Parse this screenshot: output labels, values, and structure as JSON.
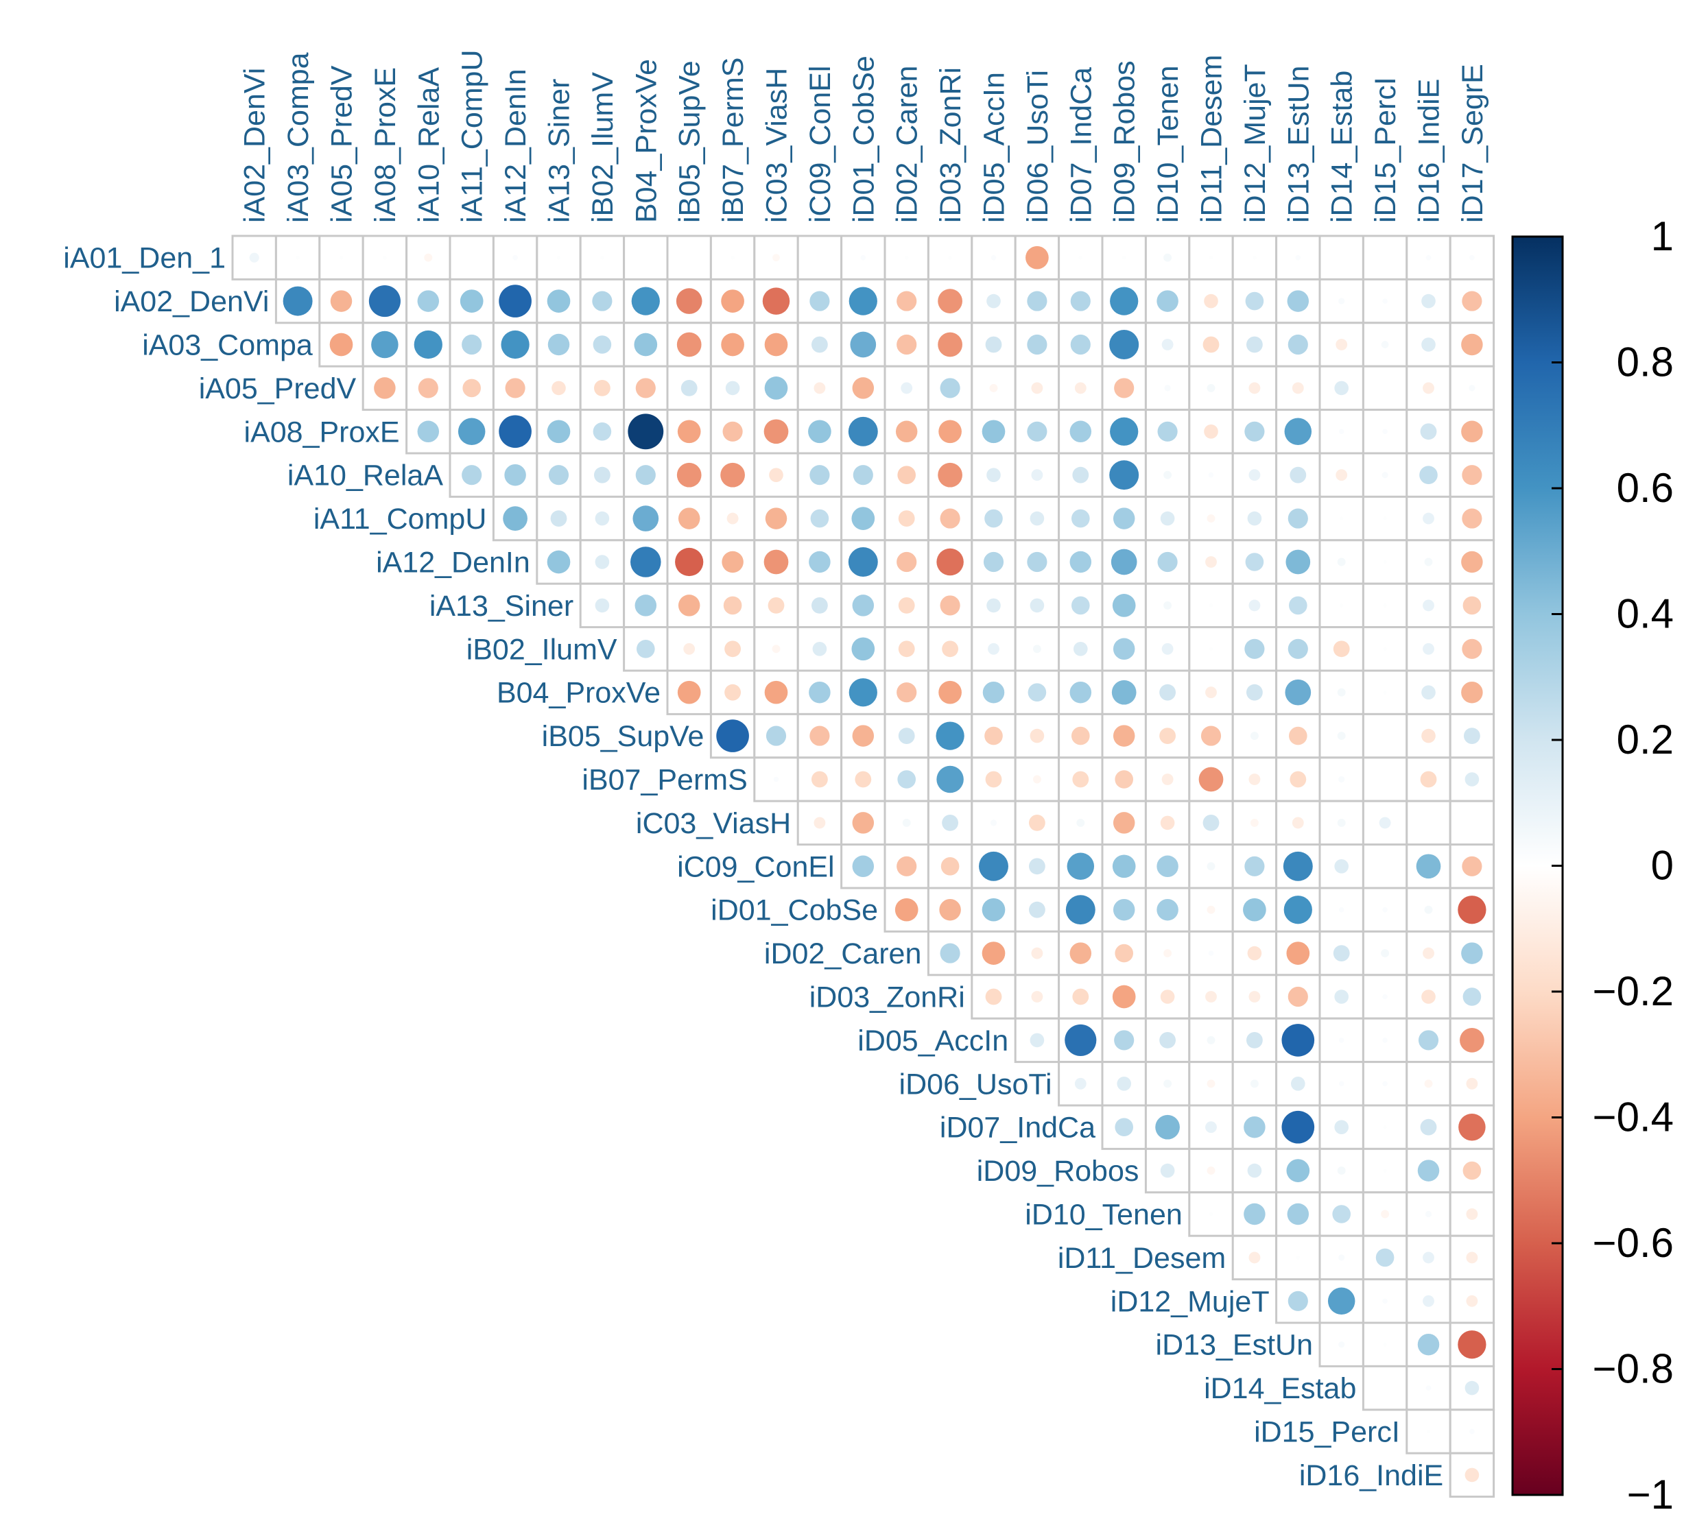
{
  "chart_data": {
    "type": "heatmap",
    "subtype": "correlation-upper-triangle-circles",
    "title": "",
    "column_labels": [
      "iA02_DenVi",
      "iA03_Compa",
      "iA05_PredV",
      "iA08_ProxE",
      "iA10_RelaA",
      "iA11_CompU",
      "iA12_DenIn",
      "iA13_Siner",
      "iB02_IlumV",
      "B04_ProxVe",
      "iB05_SupVe",
      "iB07_PermS",
      "iC03_ViasH",
      "iC09_ConEl",
      "iD01_CobSe",
      "iD02_Caren",
      "iD03_ZonRi",
      "iD05_AccIn",
      "iD06_UsoTi",
      "iD07_IndCa",
      "iD09_Robos",
      "iD10_Tenen",
      "iD11_Desem",
      "iD12_MujeT",
      "iD13_EstUn",
      "iD14_Estab",
      "iD15_PercI",
      "iD16_IndiE",
      "iD17_SegrE"
    ],
    "row_labels": [
      "iA01_Den_1",
      "iA02_DenVi",
      "iA03_Compa",
      "iA05_PredV",
      "iA08_ProxE",
      "iA10_RelaA",
      "iA11_CompU",
      "iA12_DenIn",
      "iA13_Siner",
      "iB02_IlumV",
      "B04_ProxVe",
      "iB05_SupVe",
      "iB07_PermS",
      "iC03_ViasH",
      "iC09_ConEl",
      "iD01_CobSe",
      "iD02_Caren",
      "iD03_ZonRi",
      "iD05_AccIn",
      "iD06_UsoTi",
      "iD07_IndCa",
      "iD09_Robos",
      "iD10_Tenen",
      "iD11_Desem",
      "iD12_MujeT",
      "iD13_EstUn",
      "iD14_Estab",
      "iD15_PercI",
      "iD16_IndiE"
    ],
    "matrix": [
      [
        0.07,
        0.01,
        0.01,
        0.01,
        -0.05,
        0,
        0.02,
        0.01,
        0.01,
        0,
        0,
        0.01,
        -0.04,
        0,
        0.02,
        0.01,
        0.01,
        0.02,
        -0.4,
        0.01,
        0.01,
        0.05,
        0.01,
        0.01,
        0.02,
        0,
        0,
        0.02,
        0.02
      ],
      [
        null,
        0.65,
        -0.35,
        0.75,
        0.35,
        0.4,
        0.8,
        0.4,
        0.3,
        0.6,
        -0.5,
        -0.4,
        -0.55,
        0.3,
        0.6,
        -0.3,
        -0.45,
        0.15,
        0.3,
        0.3,
        0.6,
        0.35,
        -0.15,
        0.25,
        0.35,
        0.03,
        0.02,
        0.15,
        -0.3
      ],
      [
        null,
        null,
        -0.4,
        0.55,
        0.6,
        0.3,
        0.6,
        0.35,
        0.25,
        0.4,
        -0.45,
        -0.4,
        -0.4,
        0.2,
        0.5,
        -0.3,
        -0.45,
        0.2,
        0.3,
        0.3,
        0.65,
        0.1,
        -0.2,
        0.2,
        0.3,
        -0.1,
        0.04,
        0.15,
        -0.35
      ],
      [
        null,
        null,
        null,
        -0.35,
        -0.3,
        -0.25,
        -0.3,
        -0.15,
        -0.2,
        -0.3,
        0.2,
        0.15,
        0.4,
        -0.1,
        -0.35,
        0.1,
        0.3,
        -0.05,
        -0.1,
        -0.1,
        -0.3,
        0.03,
        0.05,
        -0.1,
        -0.1,
        0.15,
        0,
        -0.1,
        0.03
      ],
      [
        null,
        null,
        null,
        null,
        0.35,
        0.55,
        0.8,
        0.4,
        0.25,
        0.95,
        -0.4,
        -0.3,
        -0.45,
        0.4,
        0.65,
        -0.35,
        -0.4,
        0.4,
        0.3,
        0.35,
        0.6,
        0.3,
        -0.15,
        0.3,
        0.55,
        0.02,
        0.02,
        0.2,
        -0.35
      ],
      [
        null,
        null,
        null,
        null,
        null,
        0.3,
        0.35,
        0.3,
        0.2,
        0.3,
        -0.45,
        -0.45,
        -0.15,
        0.3,
        0.3,
        -0.25,
        -0.45,
        0.15,
        0.1,
        0.2,
        0.65,
        0.05,
        0.02,
        0.1,
        0.2,
        -0.1,
        0.03,
        0.25,
        -0.3
      ],
      [
        null,
        null,
        null,
        null,
        null,
        null,
        0.45,
        0.2,
        0.15,
        0.5,
        -0.35,
        -0.1,
        -0.35,
        0.25,
        0.4,
        -0.2,
        -0.3,
        0.25,
        0.15,
        0.25,
        0.35,
        0.15,
        -0.05,
        0.15,
        0.3,
        0.01,
        0.01,
        0.1,
        -0.3
      ],
      [
        null,
        null,
        null,
        null,
        null,
        null,
        null,
        0.4,
        0.15,
        0.7,
        -0.6,
        -0.35,
        -0.45,
        0.35,
        0.65,
        -0.3,
        -0.55,
        0.3,
        0.3,
        0.35,
        0.5,
        0.3,
        -0.1,
        0.25,
        0.45,
        0.05,
        0.01,
        0.05,
        -0.35
      ],
      [
        null,
        null,
        null,
        null,
        null,
        null,
        null,
        null,
        0.15,
        0.35,
        -0.35,
        -0.25,
        -0.2,
        0.2,
        0.35,
        -0.2,
        -0.3,
        0.15,
        0.15,
        0.25,
        0.4,
        0.05,
        0.01,
        0.1,
        0.25,
        0.01,
        0.01,
        0.1,
        -0.25
      ],
      [
        null,
        null,
        null,
        null,
        null,
        null,
        null,
        null,
        null,
        0.25,
        -0.1,
        -0.2,
        -0.05,
        0.15,
        0.4,
        -0.2,
        -0.2,
        0.1,
        0.05,
        0.15,
        0.35,
        0.1,
        0.01,
        0.3,
        0.3,
        -0.2,
        0.01,
        0.1,
        -0.3
      ],
      [
        null,
        null,
        null,
        null,
        null,
        null,
        null,
        null,
        null,
        null,
        -0.4,
        -0.2,
        -0.4,
        0.35,
        0.6,
        -0.3,
        -0.4,
        0.35,
        0.25,
        0.35,
        0.45,
        0.2,
        -0.1,
        0.2,
        0.5,
        0.05,
        0.01,
        0.15,
        -0.35
      ],
      [
        null,
        null,
        null,
        null,
        null,
        null,
        null,
        null,
        null,
        null,
        null,
        0.8,
        0.3,
        -0.3,
        -0.35,
        0.2,
        0.6,
        -0.25,
        -0.15,
        -0.25,
        -0.35,
        -0.2,
        -0.3,
        0.05,
        -0.25,
        0.05,
        0,
        -0.15,
        0.2
      ],
      [
        null,
        null,
        null,
        null,
        null,
        null,
        null,
        null,
        null,
        null,
        null,
        null,
        0.02,
        -0.2,
        -0.2,
        0.25,
        0.55,
        -0.2,
        -0.05,
        -0.2,
        -0.25,
        -0.1,
        -0.45,
        -0.1,
        -0.2,
        0.03,
        0,
        -0.2,
        0.15
      ],
      [
        null,
        null,
        null,
        null,
        null,
        null,
        null,
        null,
        null,
        null,
        null,
        null,
        null,
        -0.1,
        -0.35,
        0.05,
        0.2,
        0.03,
        -0.2,
        0.05,
        -0.35,
        -0.15,
        0.2,
        -0.05,
        -0.1,
        0.05,
        0.1,
        0,
        0
      ],
      [
        null,
        null,
        null,
        null,
        null,
        null,
        null,
        null,
        null,
        null,
        null,
        null,
        null,
        null,
        0.35,
        -0.3,
        -0.25,
        0.65,
        0.2,
        0.55,
        0.4,
        0.35,
        0.05,
        0.3,
        0.65,
        0.15,
        0,
        0.45,
        -0.3
      ],
      [
        null,
        null,
        null,
        null,
        null,
        null,
        null,
        null,
        null,
        null,
        null,
        null,
        null,
        null,
        null,
        -0.4,
        -0.35,
        0.4,
        0.2,
        0.65,
        0.35,
        0.35,
        -0.05,
        0.4,
        0.6,
        0.02,
        0.02,
        0.05,
        -0.6
      ],
      [
        null,
        null,
        null,
        null,
        null,
        null,
        null,
        null,
        null,
        null,
        null,
        null,
        null,
        null,
        null,
        null,
        0.3,
        -0.4,
        -0.1,
        -0.35,
        -0.25,
        -0.05,
        0.02,
        -0.15,
        -0.4,
        0.2,
        0.05,
        -0.1,
        0.35
      ],
      [
        null,
        null,
        null,
        null,
        null,
        null,
        null,
        null,
        null,
        null,
        null,
        null,
        null,
        null,
        null,
        null,
        null,
        -0.2,
        -0.1,
        -0.2,
        -0.4,
        -0.15,
        -0.1,
        -0.1,
        -0.3,
        0.15,
        0.02,
        -0.15,
        0.25
      ],
      [
        null,
        null,
        null,
        null,
        null,
        null,
        null,
        null,
        null,
        null,
        null,
        null,
        null,
        null,
        null,
        null,
        null,
        null,
        0.15,
        0.75,
        0.3,
        0.2,
        0.05,
        0.2,
        0.8,
        0.02,
        0.02,
        0.3,
        -0.45
      ],
      [
        null,
        null,
        null,
        null,
        null,
        null,
        null,
        null,
        null,
        null,
        null,
        null,
        null,
        null,
        null,
        null,
        null,
        null,
        null,
        0.1,
        0.15,
        0.05,
        -0.05,
        0.05,
        0.15,
        0.02,
        0.02,
        -0.05,
        -0.1
      ],
      [
        null,
        null,
        null,
        null,
        null,
        null,
        null,
        null,
        null,
        null,
        null,
        null,
        null,
        null,
        null,
        null,
        null,
        null,
        null,
        null,
        0.25,
        0.45,
        0.1,
        0.35,
        0.8,
        0.15,
        0.01,
        0.2,
        -0.55
      ],
      [
        null,
        null,
        null,
        null,
        null,
        null,
        null,
        null,
        null,
        null,
        null,
        null,
        null,
        null,
        null,
        null,
        null,
        null,
        null,
        null,
        null,
        0.15,
        -0.05,
        0.15,
        0.4,
        0.05,
        0.01,
        0.35,
        -0.25
      ],
      [
        null,
        null,
        null,
        null,
        null,
        null,
        null,
        null,
        null,
        null,
        null,
        null,
        null,
        null,
        null,
        null,
        null,
        null,
        null,
        null,
        null,
        null,
        0.01,
        0.35,
        0.35,
        0.25,
        -0.05,
        0.03,
        -0.1
      ],
      [
        null,
        null,
        null,
        null,
        null,
        null,
        null,
        null,
        null,
        null,
        null,
        null,
        null,
        null,
        null,
        null,
        null,
        null,
        null,
        null,
        null,
        null,
        null,
        -0.1,
        0.01,
        0.03,
        0.25,
        0.1,
        -0.1
      ],
      [
        null,
        null,
        null,
        null,
        null,
        null,
        null,
        null,
        null,
        null,
        null,
        null,
        null,
        null,
        null,
        null,
        null,
        null,
        null,
        null,
        null,
        null,
        null,
        null,
        0.3,
        0.55,
        0.02,
        0.1,
        -0.1
      ],
      [
        null,
        null,
        null,
        null,
        null,
        null,
        null,
        null,
        null,
        null,
        null,
        null,
        null,
        null,
        null,
        null,
        null,
        null,
        null,
        null,
        null,
        null,
        null,
        null,
        null,
        0.03,
        0.01,
        0.35,
        -0.6
      ],
      [
        null,
        null,
        null,
        null,
        null,
        null,
        null,
        null,
        null,
        null,
        null,
        null,
        null,
        null,
        null,
        null,
        null,
        null,
        null,
        null,
        null,
        null,
        null,
        null,
        null,
        null,
        0,
        0.02,
        0.15
      ],
      [
        null,
        null,
        null,
        null,
        null,
        null,
        null,
        null,
        null,
        null,
        null,
        null,
        null,
        null,
        null,
        null,
        null,
        null,
        null,
        null,
        null,
        null,
        null,
        null,
        null,
        null,
        null,
        0.01,
        0.02
      ],
      [
        null,
        null,
        null,
        null,
        null,
        null,
        null,
        null,
        null,
        null,
        null,
        null,
        null,
        null,
        null,
        null,
        null,
        null,
        null,
        null,
        null,
        null,
        null,
        null,
        null,
        null,
        null,
        null,
        -0.15
      ]
    ],
    "color_scale": {
      "min": -1,
      "max": 1,
      "low_color": "#67001f",
      "mid_color": "#ffffff",
      "high_color": "#053061"
    },
    "legend": {
      "position": "right",
      "ticks": [
        "1",
        "0.8",
        "0.6",
        "0.4",
        "0.2",
        "0",
        "−0.2",
        "−0.4",
        "−0.6",
        "−0.8",
        "−1"
      ]
    },
    "label_color": "#1f5f8c",
    "grid_color": "#c8c8c8"
  }
}
